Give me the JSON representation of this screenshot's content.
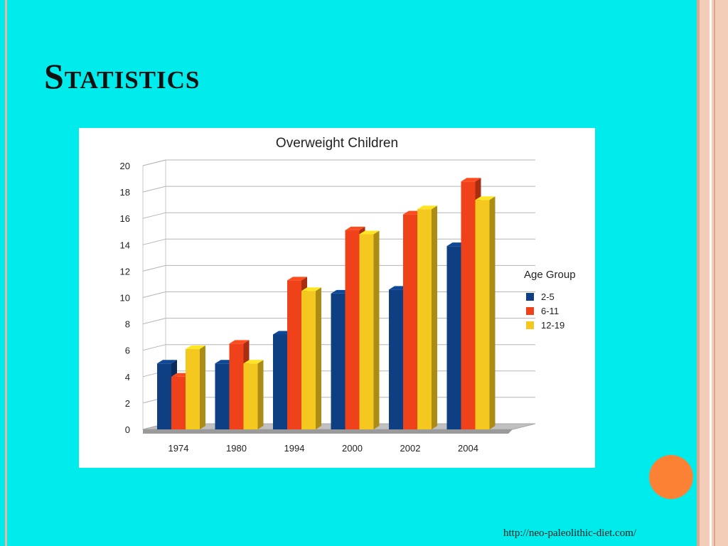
{
  "slide": {
    "title": "Statistics",
    "source": "http://neo-paleolithic-diet.com/"
  },
  "colors": {
    "background": "#00ecec",
    "accent_dot": "#fb8235"
  },
  "chart_data": {
    "type": "bar",
    "style": "3d-clustered",
    "title": "Overweight Children",
    "xlabel": "",
    "ylabel": "",
    "categories": [
      "1974",
      "1980",
      "1994",
      "2000",
      "2002",
      "2004"
    ],
    "series": [
      {
        "name": "2-5",
        "color": "#0d3f82",
        "values": [
          5,
          5,
          7.2,
          10.3,
          10.6,
          13.9
        ]
      },
      {
        "name": "6-11",
        "color": "#f0421a",
        "values": [
          4,
          6.5,
          11.3,
          15.1,
          16.3,
          18.8
        ]
      },
      {
        "name": "12-19",
        "color": "#f4c81f",
        "values": [
          6.1,
          5,
          10.5,
          14.8,
          16.7,
          17.4
        ]
      }
    ],
    "ylim": [
      0,
      20
    ],
    "yticks": [
      "0",
      "2",
      "4",
      "6",
      "8",
      "10",
      "12",
      "14",
      "16",
      "18",
      "20"
    ],
    "grid": true,
    "legend": {
      "title": "Age Group",
      "position": "right"
    }
  }
}
